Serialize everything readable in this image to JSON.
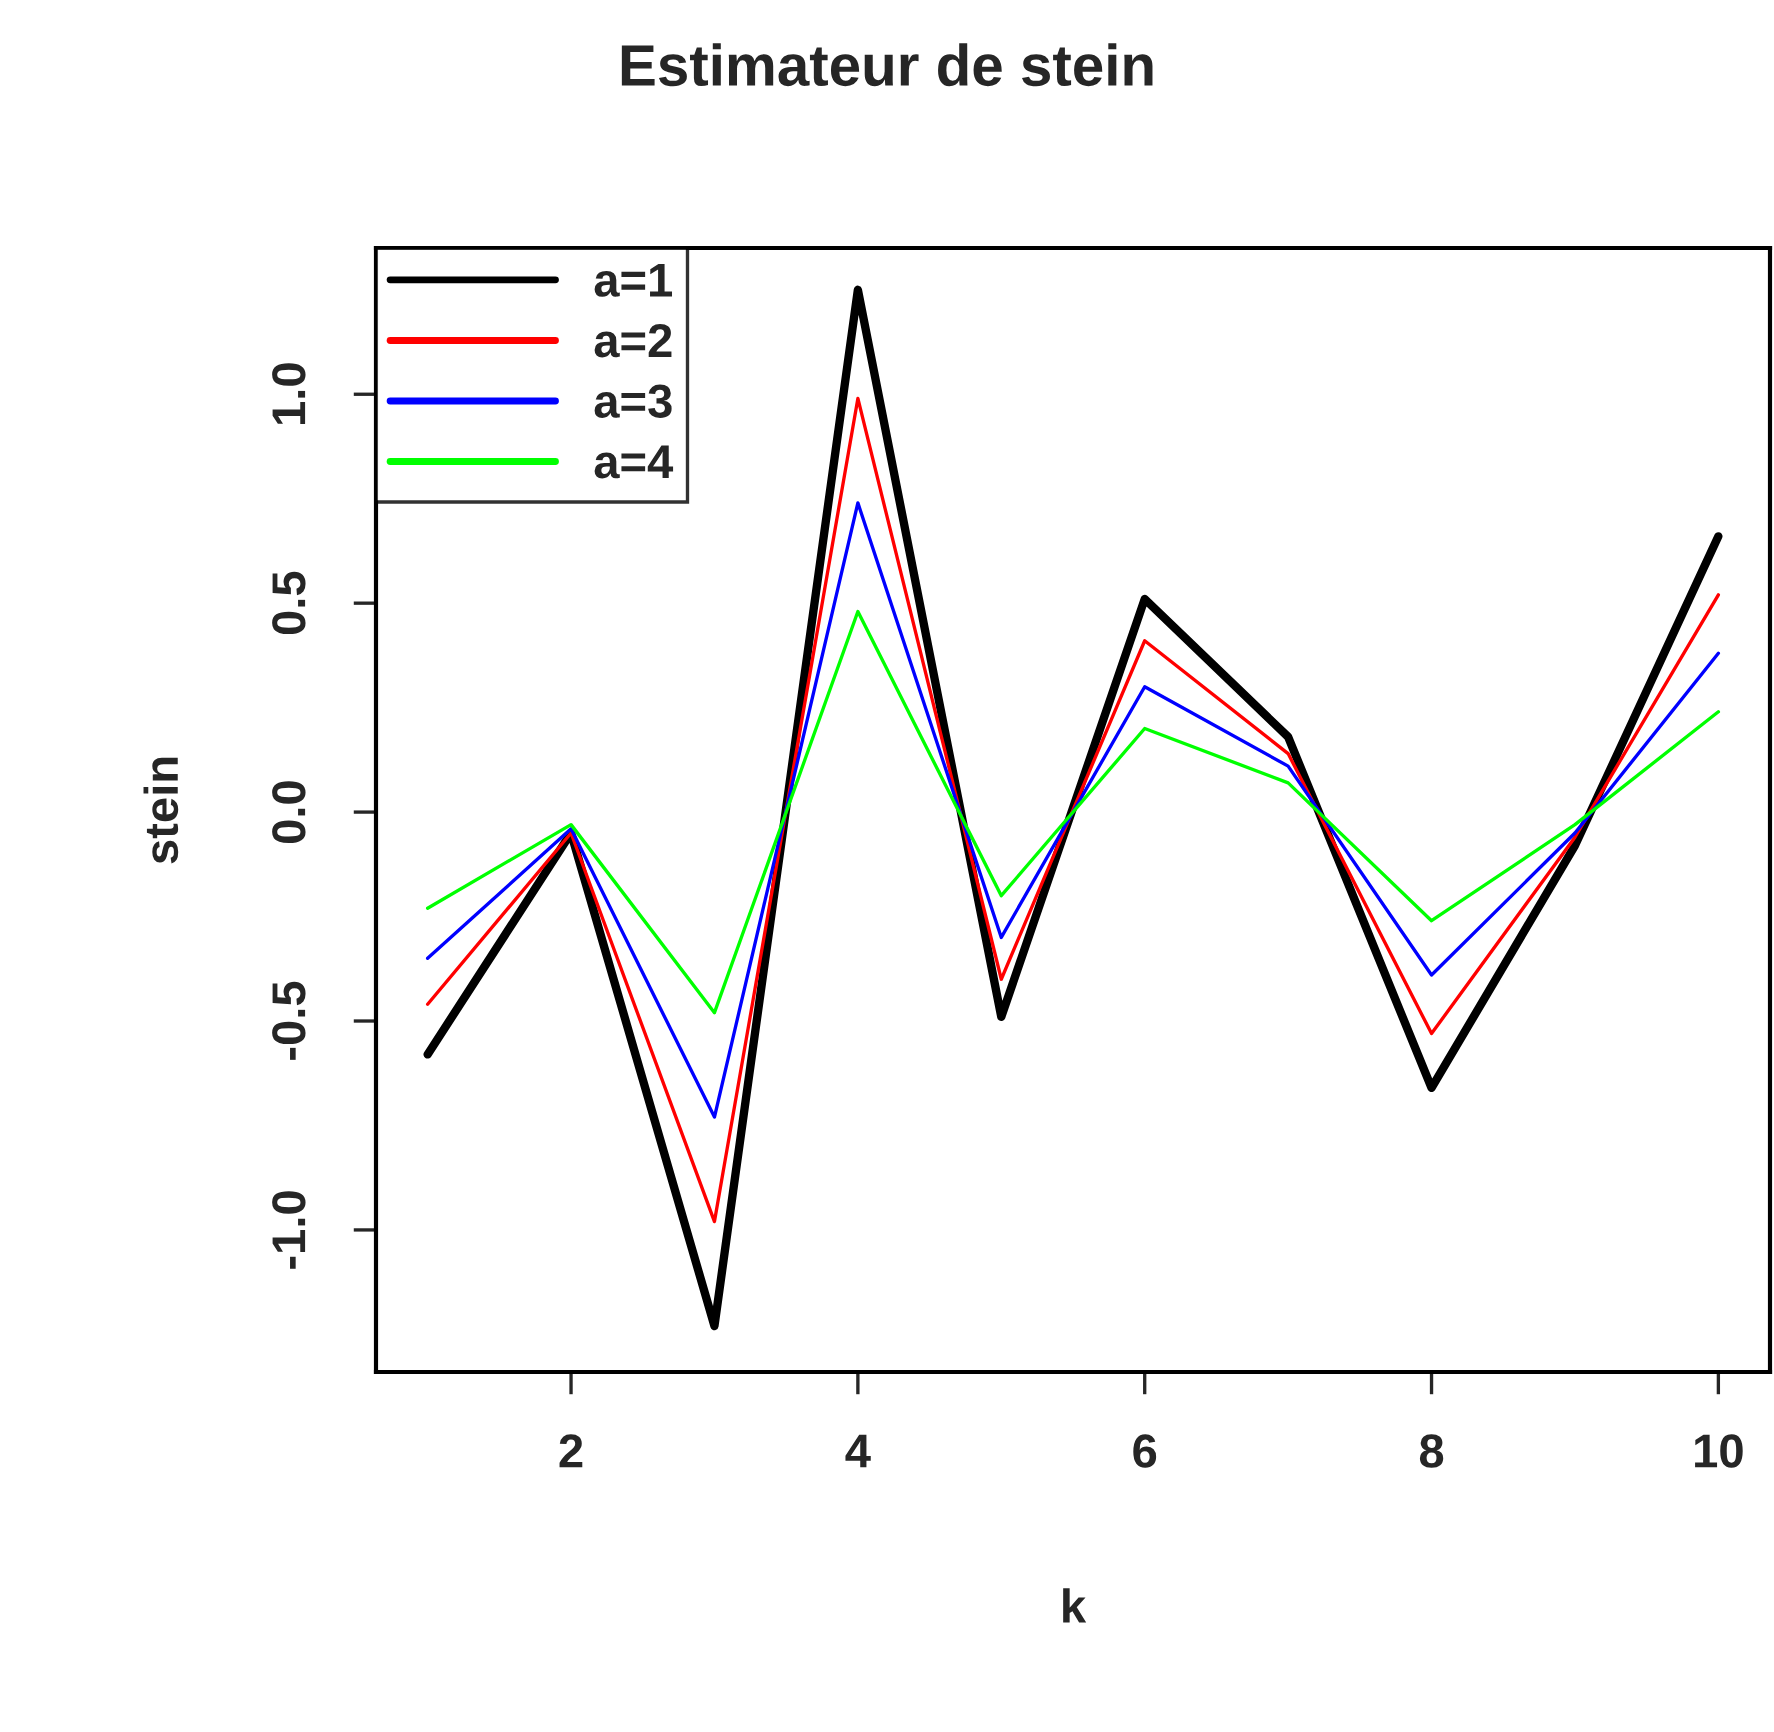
{
  "chart_data": {
    "type": "line",
    "title": "Estimateur de stein",
    "xlabel": "k",
    "ylabel": "stein",
    "x": [
      1,
      2,
      3,
      4,
      5,
      6,
      7,
      8,
      9,
      10
    ],
    "series": [
      {
        "name": "a=1",
        "color": "#000000",
        "values": [
          -0.58,
          -0.05,
          -1.23,
          1.25,
          -0.49,
          0.51,
          0.18,
          -0.66,
          -0.08,
          0.66
        ]
      },
      {
        "name": "a=2",
        "color": "#ff0000",
        "values": [
          -0.46,
          -0.05,
          -0.98,
          0.99,
          -0.4,
          0.41,
          0.14,
          -0.53,
          -0.06,
          0.52
        ]
      },
      {
        "name": "a=3",
        "color": "#0000ff",
        "values": [
          -0.35,
          -0.04,
          -0.73,
          0.74,
          -0.3,
          0.3,
          0.11,
          -0.39,
          -0.05,
          0.38
        ]
      },
      {
        "name": "a=4",
        "color": "#00ff00",
        "values": [
          -0.23,
          -0.03,
          -0.48,
          0.48,
          -0.2,
          0.2,
          0.07,
          -0.26,
          -0.03,
          0.24
        ]
      }
    ],
    "xlim": [
      0.64,
      10.36
    ],
    "ylim": [
      -1.34,
      1.35
    ],
    "xticks": [
      2,
      4,
      6,
      8,
      10
    ],
    "yticks": [
      {
        "value": -1.0,
        "label": "-1.0"
      },
      {
        "value": -0.5,
        "label": "-0.5"
      },
      {
        "value": 0.0,
        "label": "0.0"
      },
      {
        "value": 0.5,
        "label": "0.5"
      },
      {
        "value": 1.0,
        "label": "1.0"
      }
    ],
    "legend": "top left",
    "grid": false,
    "marker": "none",
    "line_style": "solid"
  }
}
